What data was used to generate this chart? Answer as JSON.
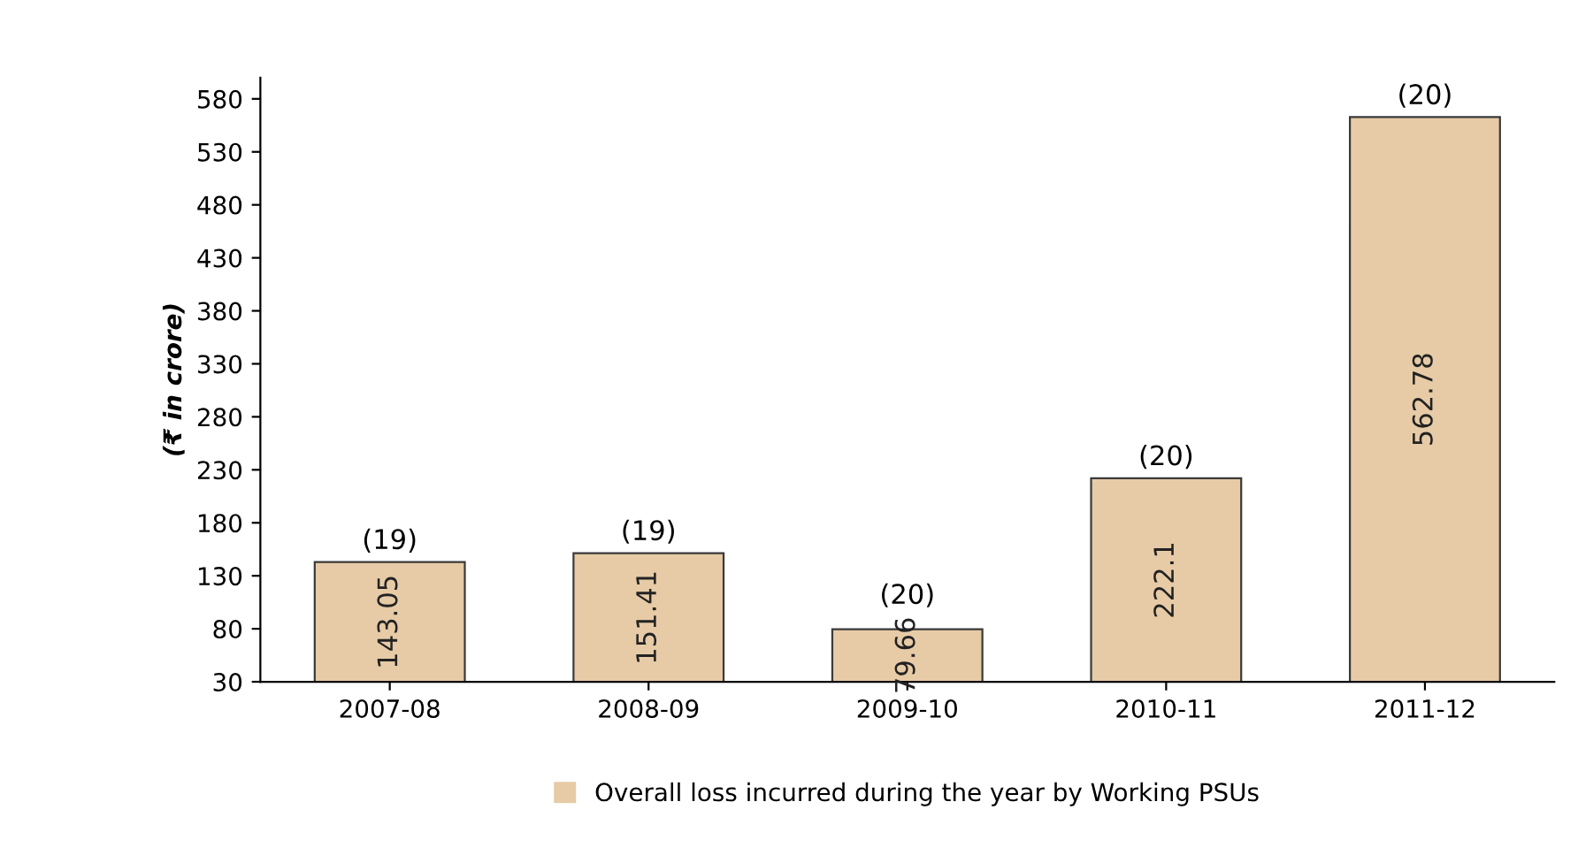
{
  "chart_data": {
    "type": "bar",
    "ylabel": "(₹ in crore)",
    "categories": [
      "2007-08",
      "2008-09",
      "2009-10",
      "2010-11",
      "2011-12"
    ],
    "series": [
      {
        "name": "Overall loss incurred during the year by Working PSUs",
        "color": "#e6cba6",
        "values": [
          143.05,
          151.41,
          79.66,
          222.1,
          562.78
        ]
      }
    ],
    "ylim": [
      30,
      600
    ],
    "yticks": [
      30,
      80,
      130,
      180,
      230,
      280,
      330,
      380,
      430,
      480,
      530,
      580
    ],
    "data_labels": true,
    "grid": false,
    "legend": "bottom",
    "annotations": [
      {
        "text": "(19)",
        "x": "2007-08",
        "y": 143.05
      },
      {
        "text": "(19)",
        "x": "2008-09",
        "y": 151.41
      },
      {
        "text": "(20)",
        "x": "2009-10",
        "y": 79.66
      },
      {
        "text": "(20)",
        "x": "2010-11",
        "y": 222.1
      },
      {
        "text": "(20)",
        "x": "2011-12",
        "y": 562.78
      }
    ]
  }
}
